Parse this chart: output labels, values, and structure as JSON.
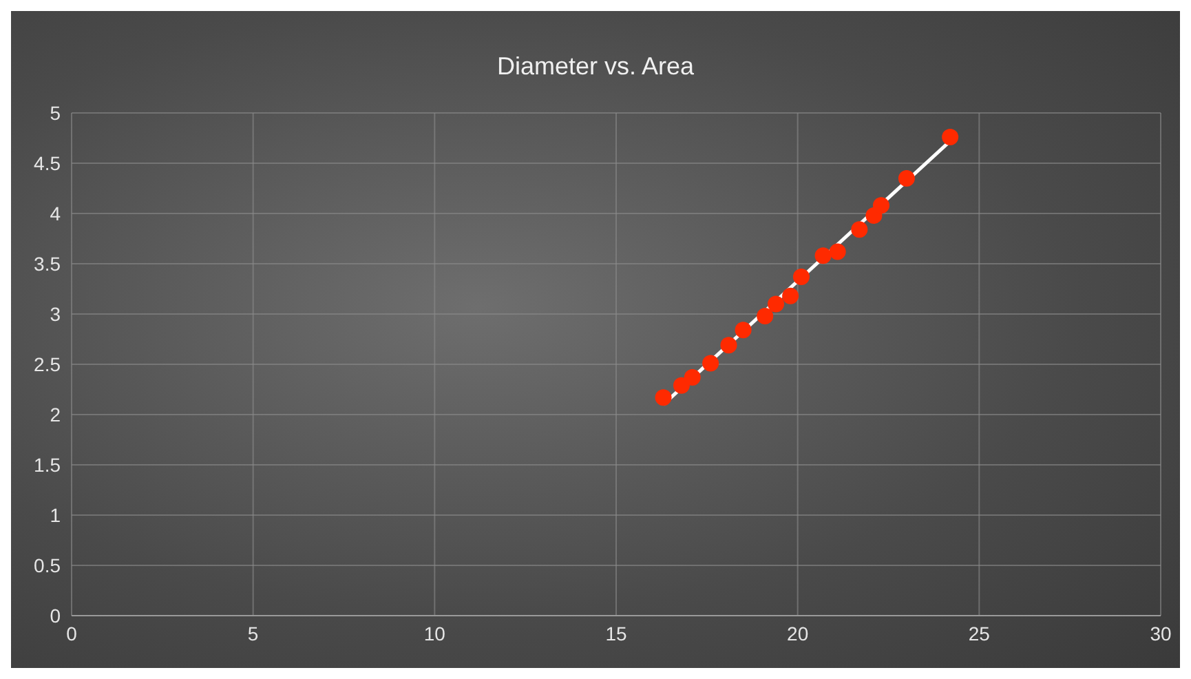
{
  "chart_data": {
    "type": "scatter",
    "title": "Diameter vs. Area",
    "xlim": [
      0,
      30
    ],
    "xticks": [
      0,
      5,
      10,
      15,
      20,
      25,
      30
    ],
    "ylim": [
      0,
      5
    ],
    "yticks": [
      0,
      0.5,
      1,
      1.5,
      2,
      2.5,
      3,
      3.5,
      4,
      4.5,
      5
    ],
    "grid": true,
    "legend": false,
    "series": [
      {
        "marker": "circle",
        "color": "#ff2a00",
        "x": [
          16.3,
          16.8,
          17.1,
          17.6,
          18.1,
          18.5,
          19.1,
          19.4,
          19.8,
          20.1,
          20.7,
          21.1,
          21.7,
          22.1,
          22.3,
          23.0,
          24.2
        ],
        "values": [
          2.17,
          2.29,
          2.37,
          2.51,
          2.69,
          2.84,
          2.98,
          3.1,
          3.18,
          3.37,
          3.58,
          3.62,
          3.84,
          3.98,
          4.08,
          4.35,
          4.76
        ]
      },
      {
        "type": "line",
        "marker": "none",
        "color": "#ffffff",
        "x": [
          16.3,
          24.2
        ],
        "values": [
          2.1,
          4.72
        ]
      }
    ]
  }
}
